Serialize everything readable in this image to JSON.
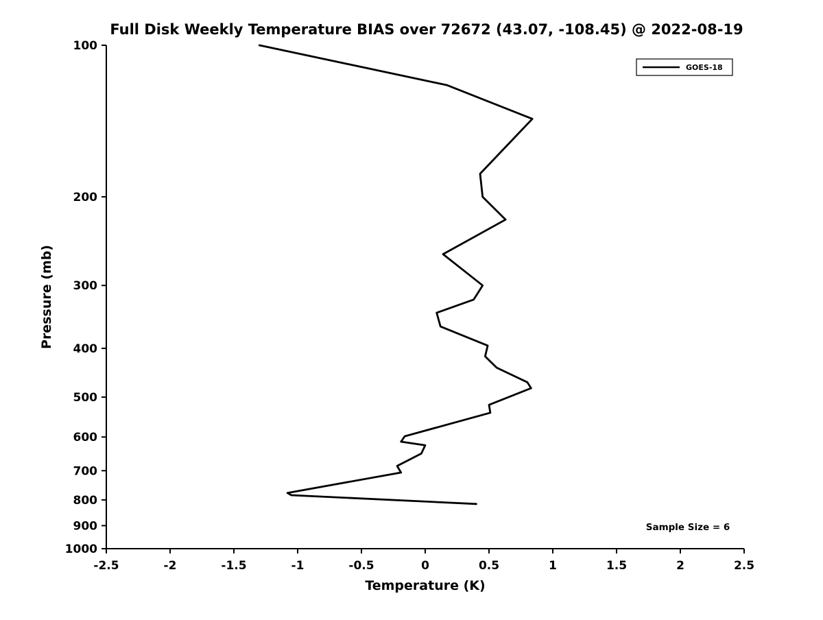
{
  "page": {
    "background_color": "#ffffff",
    "text_color": "#000000"
  },
  "chart_data": {
    "type": "line",
    "title": "Full Disk Weekly Temperature BIAS over 72672 (43.07, -108.45) @ 2022-08-19",
    "xlabel": "Temperature (K)",
    "ylabel": "Pressure (mb)",
    "xlim": [
      -2.5,
      2.5
    ],
    "ylim": [
      100,
      1000
    ],
    "yscale": "log",
    "y_axis_inverted": true,
    "grid": false,
    "xticks": [
      -2.5,
      -2,
      -1.5,
      -1,
      -0.5,
      0,
      0.5,
      1,
      1.5,
      2,
      2.5
    ],
    "xtick_labels": [
      "-2.5",
      "-2",
      "-1.5",
      "-1",
      "-0.5",
      "0",
      "0.5",
      "1",
      "1.5",
      "2",
      "2.5"
    ],
    "yticks": [
      100,
      200,
      300,
      400,
      500,
      600,
      700,
      800,
      900,
      1000
    ],
    "legend": {
      "position": "top-right",
      "entries": [
        {
          "label": "GOES-18",
          "color": "#000000"
        }
      ]
    },
    "annotation": "Sample Size = 6",
    "series": [
      {
        "name": "GOES-18",
        "color": "#000000",
        "line_width": 2.8,
        "points_format": "[pressure_mb, temperature_bias_K]",
        "points": [
          [
            100,
            -1.3
          ],
          [
            120,
            0.17
          ],
          [
            140,
            0.84
          ],
          [
            180,
            0.43
          ],
          [
            200,
            0.45
          ],
          [
            222,
            0.63
          ],
          [
            260,
            0.14
          ],
          [
            300,
            0.45
          ],
          [
            320,
            0.38
          ],
          [
            340,
            0.09
          ],
          [
            362,
            0.12
          ],
          [
            395,
            0.49
          ],
          [
            415,
            0.47
          ],
          [
            437,
            0.56
          ],
          [
            467,
            0.8
          ],
          [
            480,
            0.83
          ],
          [
            518,
            0.5
          ],
          [
            537,
            0.51
          ],
          [
            598,
            -0.16
          ],
          [
            613,
            -0.19
          ],
          [
            623,
            0.0
          ],
          [
            647,
            -0.03
          ],
          [
            685,
            -0.22
          ],
          [
            706,
            -0.19
          ],
          [
            775,
            -1.08
          ],
          [
            783,
            -1.05
          ],
          [
            815,
            0.4
          ]
        ]
      }
    ]
  }
}
